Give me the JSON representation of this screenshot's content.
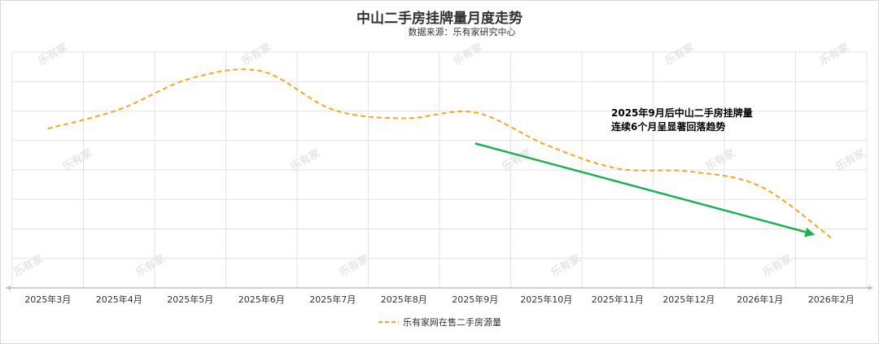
{
  "chart_data": {
    "type": "line",
    "title": "中山二手房挂牌量月度走势",
    "subtitle": "数据来源：乐有家研究中心",
    "categories": [
      "2025年3月",
      "2025年4月",
      "2025年5月",
      "2025年6月",
      "2025年7月",
      "2025年8月",
      "2025年9月",
      "2025年10月",
      "2025年11月",
      "2025年12月",
      "2026年1月",
      "2026年2月"
    ],
    "series": [
      {
        "name": "乐有家网在售二手房源量",
        "values": [
          5.4,
          6.05,
          7.1,
          7.35,
          6.05,
          5.75,
          5.95,
          4.85,
          4.05,
          3.95,
          3.45,
          1.7
        ],
        "color": "#f5a623",
        "style": "dashed"
      }
    ],
    "ylim": [
      0,
      8
    ],
    "grid": true,
    "legend": "bottom",
    "annotation": {
      "lines": [
        "2025年9月后中山二手房挂牌量",
        "连续6个月呈显著回落趋势"
      ],
      "arrow": {
        "from": {
          "x": "2025年9月",
          "y": 4.9
        },
        "to": {
          "x": "2026年2月",
          "y": 1.8
        }
      },
      "arrow_color": "#1db154"
    },
    "watermark": "乐有家"
  }
}
